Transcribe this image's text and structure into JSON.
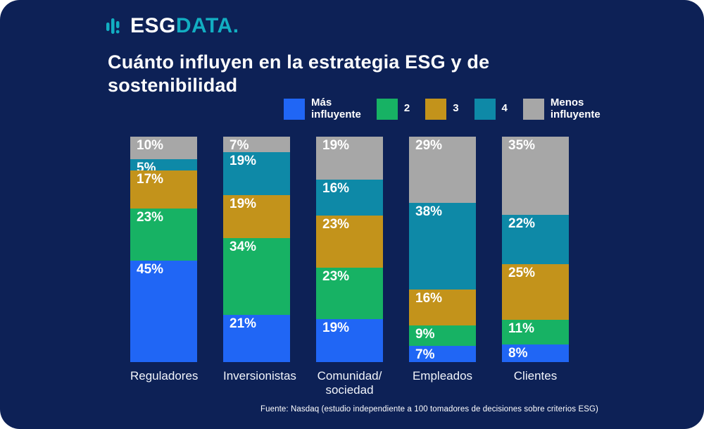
{
  "brand": {
    "name_primary": "ESG",
    "name_secondary": "DATA",
    "dot": ".",
    "accent_color": "#12aec2"
  },
  "title": "Cuánto influyen en la estrategia ESG y de sostenibilidad",
  "footer": "Fuente: Nasdaq (estudio independiente a 100 tomadores de decisiones sobre criterios ESG)",
  "colors": {
    "background": "#0d2156",
    "text": "#ffffff",
    "blue": "#2066f5",
    "green": "#17b264",
    "gold": "#c3931b",
    "teal": "#0e89a7",
    "gray": "#a7a7a7"
  },
  "chart_data": {
    "type": "bar",
    "stacked": true,
    "orientation": "vertical",
    "title": "Cuánto influyen en la estrategia ESG y de sostenibilidad",
    "categories": [
      "Reguladores",
      "Inversionistas",
      "Comunidad/\nsociedad",
      "Empleados",
      "Clientes"
    ],
    "series": [
      {
        "name": "Más influyente",
        "legend_label": "Más\ninfluyente",
        "color": "#2066f5",
        "values": [
          45,
          21,
          19,
          7,
          8
        ]
      },
      {
        "name": "2",
        "legend_label": "2",
        "color": "#17b264",
        "values": [
          23,
          34,
          23,
          9,
          11
        ]
      },
      {
        "name": "3",
        "legend_label": "3",
        "color": "#c3931b",
        "values": [
          17,
          19,
          23,
          16,
          25
        ]
      },
      {
        "name": "4",
        "legend_label": "4",
        "color": "#0e89a7",
        "values": [
          5,
          19,
          16,
          38,
          22
        ]
      },
      {
        "name": "Menos influyente",
        "legend_label": "Menos\ninfluyente",
        "color": "#a7a7a7",
        "values": [
          10,
          7,
          19,
          29,
          35
        ]
      }
    ],
    "value_suffix": "%",
    "ylim": [
      0,
      100
    ],
    "grid": false,
    "legend_position": "top"
  }
}
